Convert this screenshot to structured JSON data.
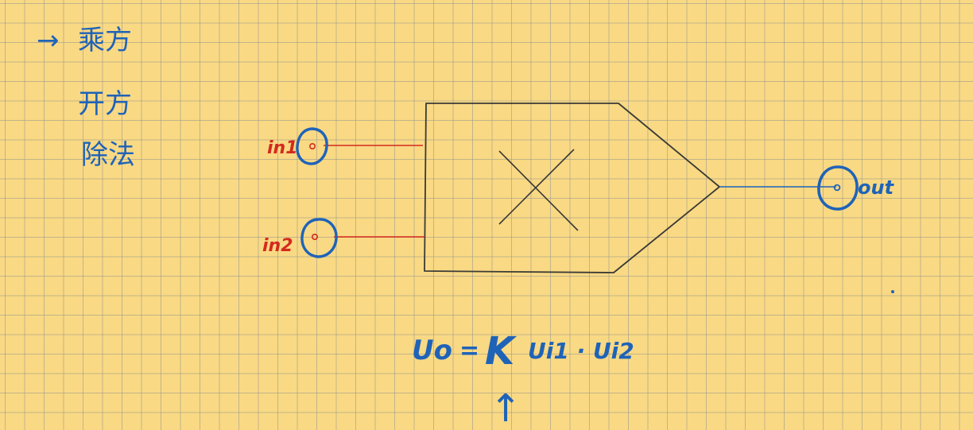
{
  "notes": {
    "items": [
      "乘方",
      "开方",
      "除法"
    ],
    "arrow": "→"
  },
  "diagram": {
    "inputs": [
      "in1",
      "in2"
    ],
    "output": "out",
    "operation_symbol": "×"
  },
  "formula": {
    "text": "Uo = K Ui1 · Ui2",
    "lhs": "Uo",
    "equals": "=",
    "constant": "K",
    "rhs": "Ui1 · Ui2",
    "pointer": "↑"
  },
  "colors": {
    "background": "#f9d984",
    "grid": "#9a9a8c",
    "ink_blue": "#1f63b8",
    "ink_red": "#d42a1e",
    "symbol_dark": "#3a3a36"
  }
}
